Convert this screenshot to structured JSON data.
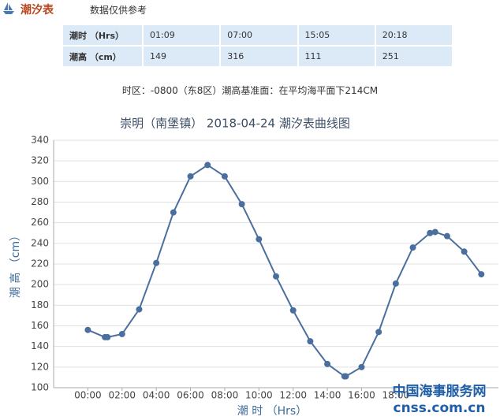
{
  "header": {
    "title": "潮汐表",
    "note": "数据仅供参考"
  },
  "table": {
    "rows": [
      [
        "潮时 （Hrs）",
        "01:09",
        "07:00",
        "15:05",
        "20:18"
      ],
      [
        "潮高 （cm）",
        "149",
        "316",
        "111",
        "251"
      ]
    ]
  },
  "timezone": "时区：-0800（东8区）潮高基准面：在平均海平面下214CM",
  "watermark": [
    "中国海事服务网",
    "cnss.com.cn"
  ],
  "chart_data": {
    "type": "line",
    "title": "崇明（南堡镇） 2018-04-24 潮汐表曲线图",
    "x_label": "潮 时 （Hrs）",
    "y_label": "潮 高 （cm）",
    "x": [
      0,
      1,
      1.15,
      2,
      3,
      4,
      5,
      6,
      7,
      8,
      9,
      10,
      11,
      12,
      13,
      14,
      15,
      15.08,
      16,
      17,
      18,
      19,
      20,
      20.3,
      21,
      22,
      23
    ],
    "series": [
      {
        "name": "潮高",
        "color": "#4a6f9e",
        "values": [
          156,
          149,
          149,
          152,
          176,
          221,
          270,
          305,
          316,
          305,
          278,
          244,
          208,
          175,
          145,
          123,
          111,
          111,
          120,
          154,
          201,
          236,
          250,
          251,
          247,
          232,
          210
        ]
      }
    ],
    "xlim": [
      -2,
      24
    ],
    "xticks": [
      {
        "value": 0,
        "label": "00:00"
      },
      {
        "value": 2,
        "label": "02:00"
      },
      {
        "value": 4,
        "label": "04:00"
      },
      {
        "value": 6,
        "label": "06:00"
      },
      {
        "value": 8,
        "label": "08:00"
      },
      {
        "value": 10,
        "label": "10:00"
      },
      {
        "value": 12,
        "label": "12:00"
      },
      {
        "value": 14,
        "label": "14:00"
      },
      {
        "value": 16,
        "label": "16:00"
      },
      {
        "value": 18,
        "label": "18:00"
      }
    ],
    "ylim": [
      100,
      340
    ],
    "yticks": [
      100,
      120,
      140,
      160,
      180,
      200,
      220,
      240,
      260,
      280,
      300,
      320,
      340
    ],
    "grid": true
  }
}
